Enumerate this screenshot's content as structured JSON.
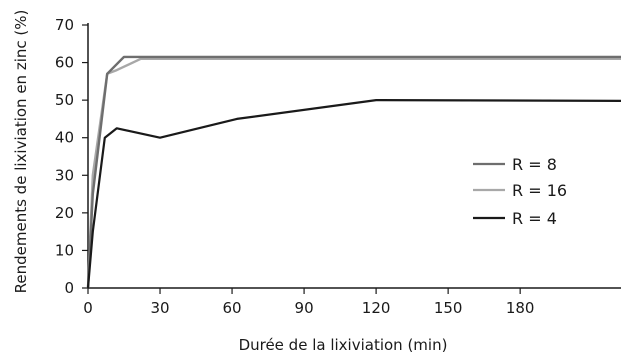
{
  "chart_data": {
    "type": "line",
    "title": "",
    "xlabel": "Durée de la lixiviation (min)",
    "ylabel": "Rendements de lixiviation en zinc (%)",
    "xlim": [
      0,
      222
    ],
    "ylim": [
      0,
      70
    ],
    "x_ticks": [
      0,
      30,
      60,
      90,
      120,
      150,
      180
    ],
    "y_ticks": [
      0,
      10,
      20,
      30,
      40,
      50,
      60,
      70
    ],
    "grid": false,
    "legend_position": "right",
    "series": [
      {
        "name": "R = 8",
        "color": "#6e6e6e",
        "x": [
          0,
          2,
          8,
          15,
          25,
          60,
          120,
          222
        ],
        "y": [
          0,
          25,
          57,
          61.5,
          61.5,
          61.5,
          61.5,
          61.5
        ]
      },
      {
        "name": "R = 16",
        "color": "#a8a8a8",
        "x": [
          0,
          2,
          8,
          12,
          22,
          60,
          120,
          222
        ],
        "y": [
          0,
          30,
          57,
          58,
          61,
          61,
          61,
          61
        ]
      },
      {
        "name": "R = 4",
        "color": "#1a1a1a",
        "x": [
          0,
          2,
          7,
          12,
          30,
          62,
          120,
          222
        ],
        "y": [
          0,
          15,
          40,
          42.5,
          40,
          45,
          50,
          49.8
        ]
      }
    ]
  }
}
